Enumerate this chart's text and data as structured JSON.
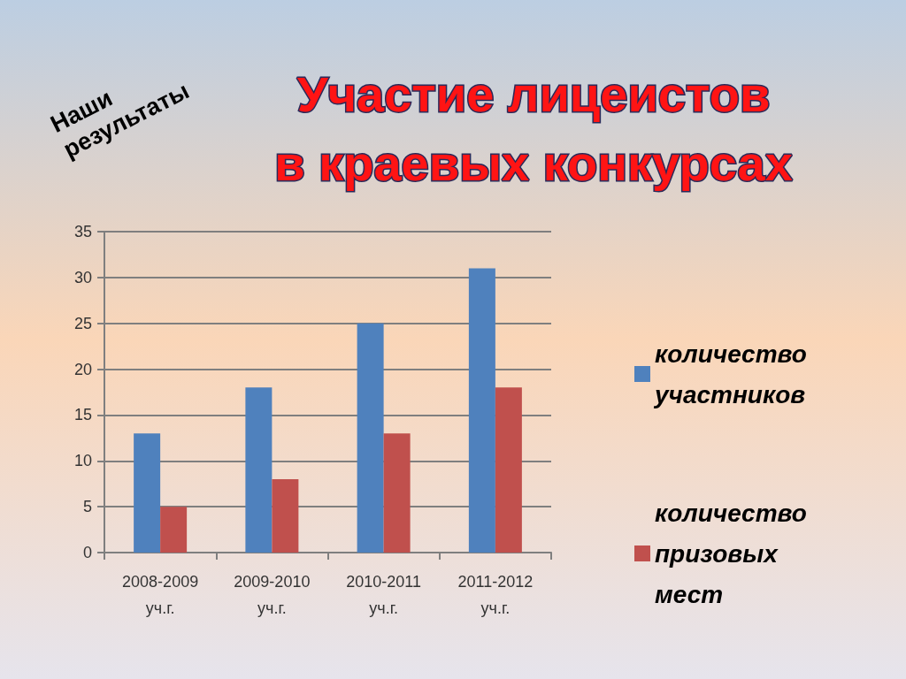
{
  "chart_data": {
    "type": "bar",
    "title": "Участие лицеистов\nв краевых конкурсах",
    "annotations": [
      "Наши результаты"
    ],
    "categories": [
      "2008-2009 уч.г.",
      "2009-2010 уч.г.",
      "2010-2011 уч.г.",
      "2011-2012 уч.г."
    ],
    "series": [
      {
        "name": "количество участников",
        "color": "#4f81bd",
        "values": [
          13,
          18,
          25,
          31
        ]
      },
      {
        "name": "количество призовых мест",
        "color": "#c0504d",
        "values": [
          5,
          8,
          13,
          18
        ]
      }
    ],
    "ylim": [
      0,
      35
    ],
    "yticks": [
      0,
      5,
      10,
      15,
      20,
      25,
      30,
      35
    ],
    "grid": "y",
    "legend": "right"
  }
}
